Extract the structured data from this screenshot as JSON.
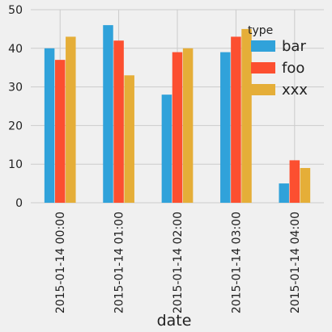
{
  "chart_data": {
    "type": "bar",
    "xlabel": "date",
    "ylabel": "",
    "ylim": [
      0,
      50
    ],
    "yticks": [
      "0",
      "10",
      "20",
      "30",
      "40",
      "50"
    ],
    "grid": true,
    "legend_title": "type",
    "legend_position": "top-right",
    "categories": [
      "2015-01-14 00:00",
      "2015-01-14 01:00",
      "2015-01-14 02:00",
      "2015-01-14 03:00",
      "2015-01-14 04:00"
    ],
    "series": [
      {
        "name": "bar",
        "color": "#30a2da",
        "values": [
          40,
          46,
          28,
          39,
          5
        ]
      },
      {
        "name": "foo",
        "color": "#fc4f30",
        "values": [
          37,
          42,
          39,
          43,
          11
        ]
      },
      {
        "name": "xxx",
        "color": "#e5ae38",
        "values": [
          43,
          33,
          40,
          45,
          9
        ]
      }
    ]
  }
}
